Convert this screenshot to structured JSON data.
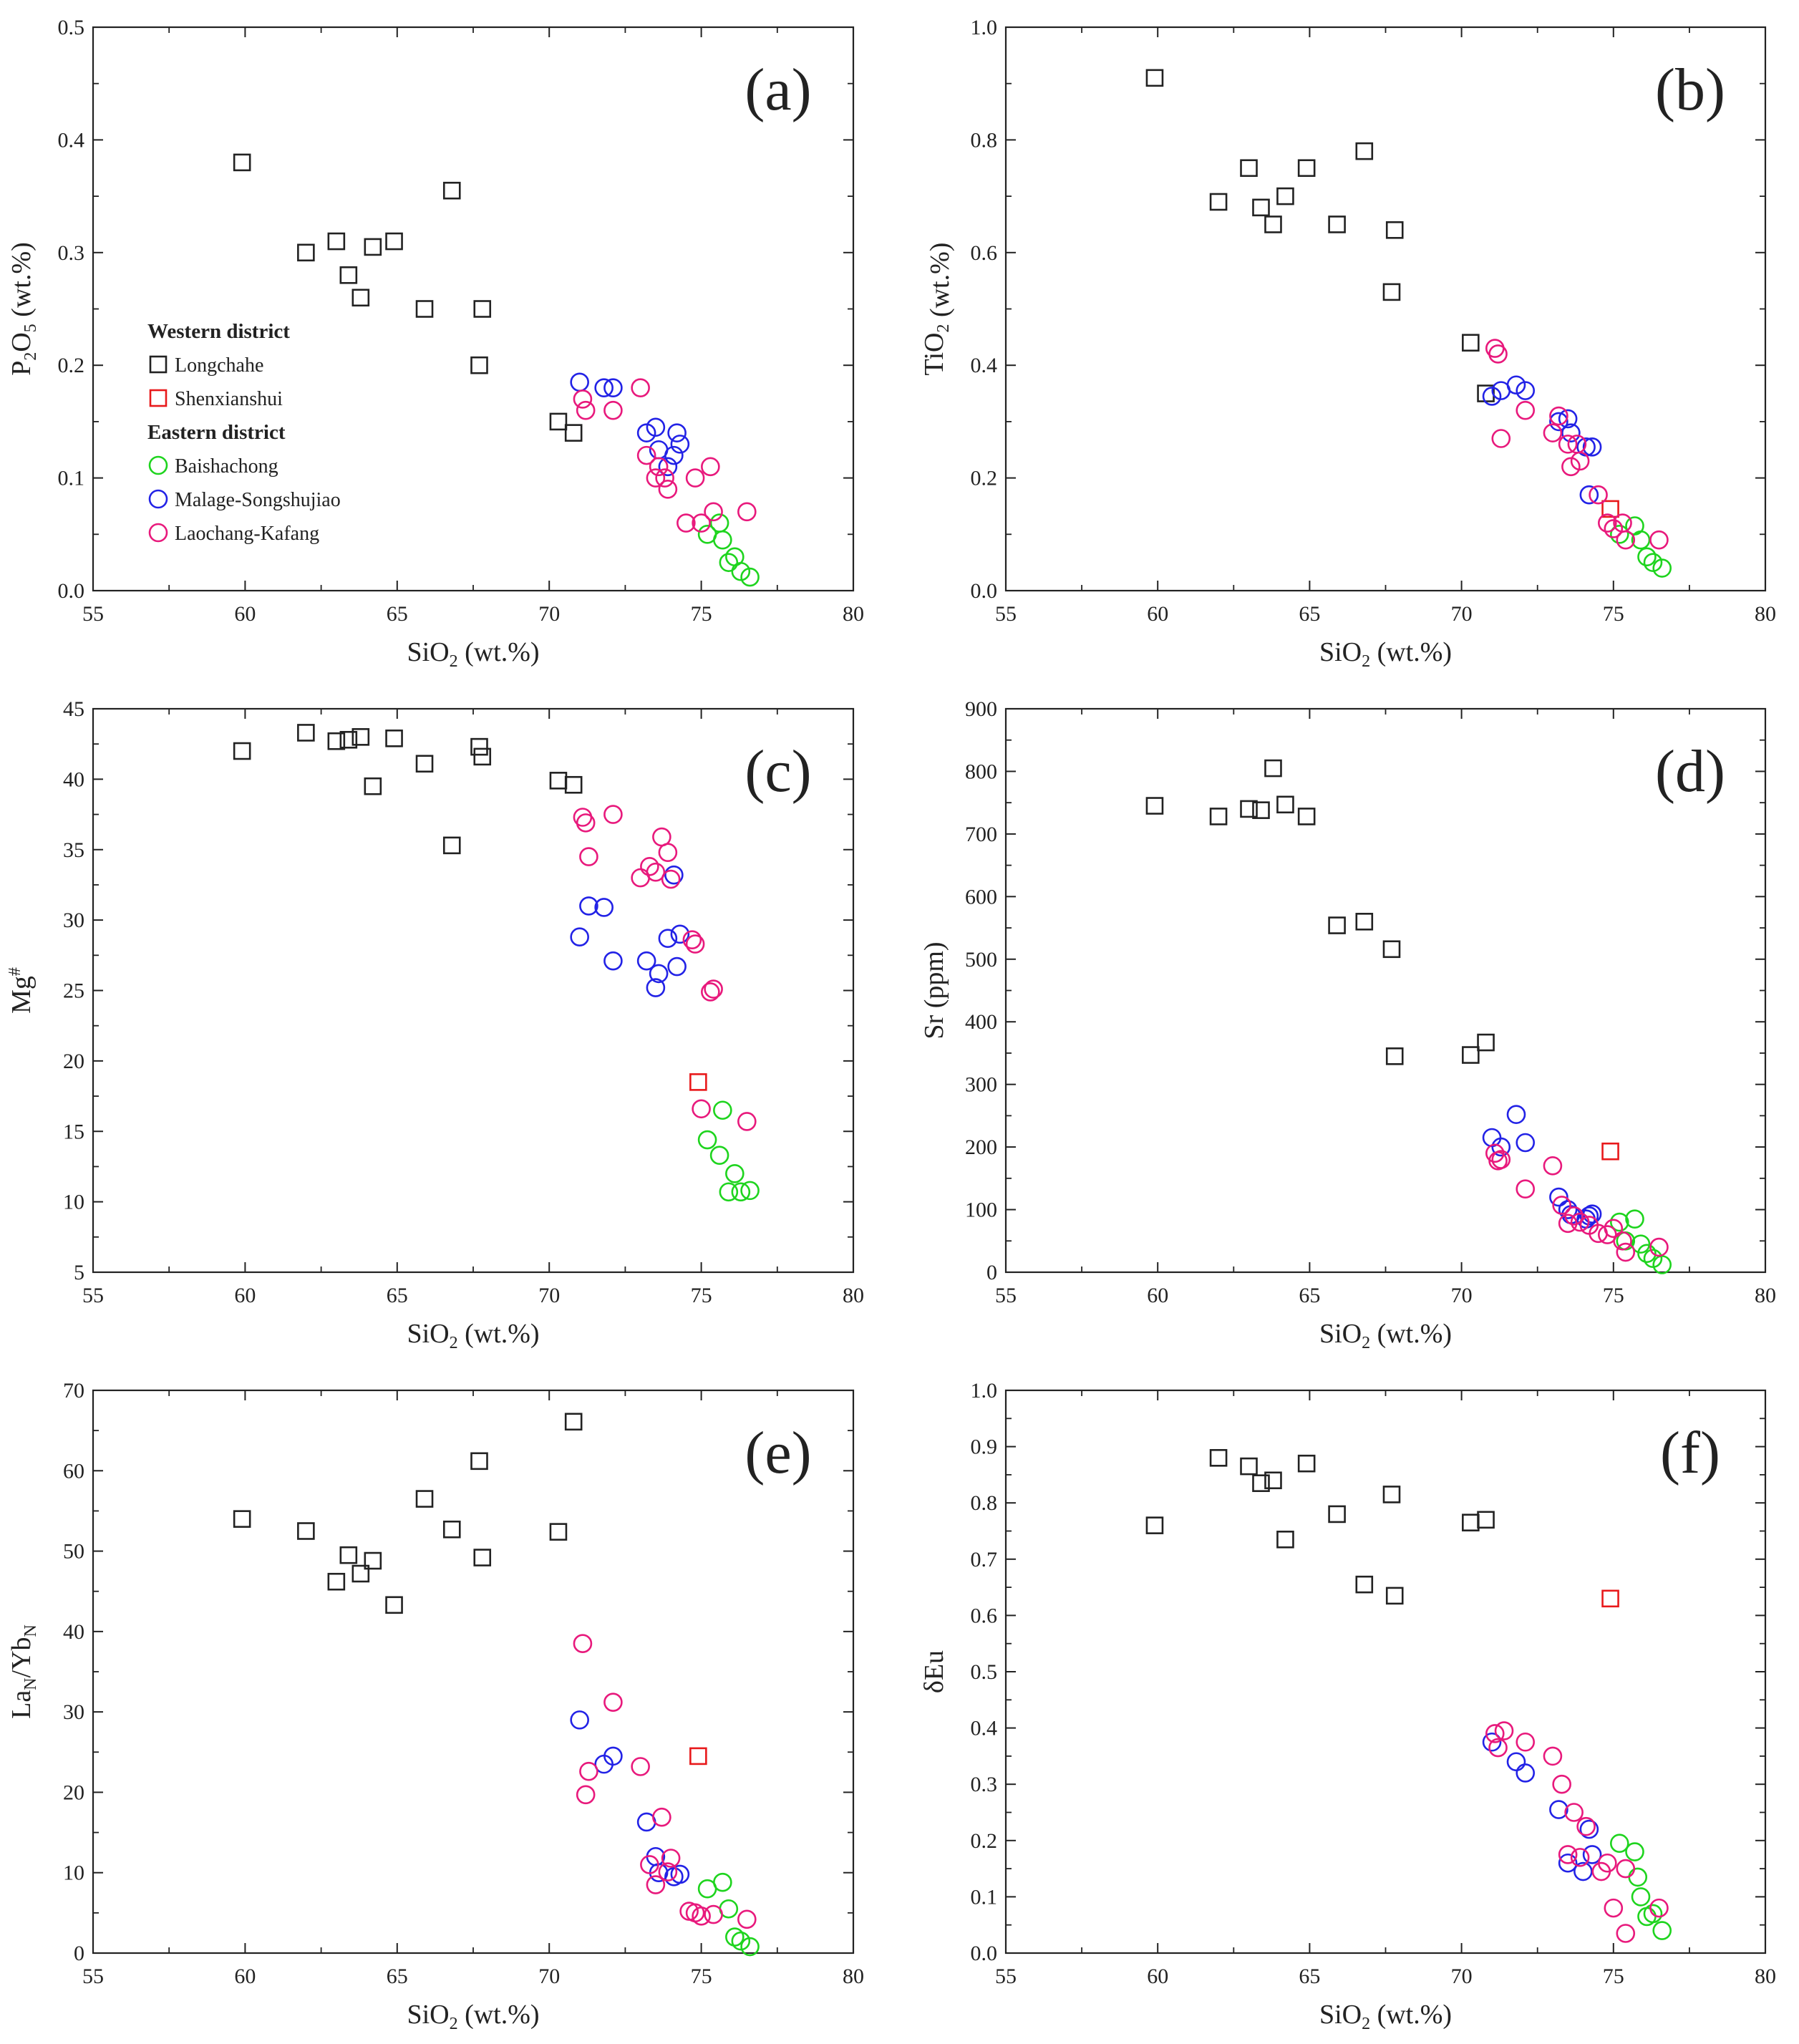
{
  "figure_title": "",
  "legend": {
    "western_heading": "Western district",
    "eastern_heading": "Eastern district",
    "entries": [
      {
        "name": "Longchahe",
        "marker": "square",
        "color": "#222222"
      },
      {
        "name": "Shenxianshui",
        "marker": "square",
        "color": "#e8191b"
      },
      {
        "name": "Baishachong",
        "marker": "circle",
        "color": "#1ed41e"
      },
      {
        "name": "Malage-Songshujiao",
        "marker": "circle",
        "color": "#2222e6"
      },
      {
        "name": "Laochang-Kafang",
        "marker": "circle",
        "color": "#e8197c"
      }
    ]
  },
  "chart_data": [
    {
      "type": "scatter",
      "panel": "(a)",
      "title": "",
      "xlabel": "SiO",
      "xlabel_sub": "2",
      "xlabel_tail": " (wt.%)",
      "ylabel": "P",
      "ylabel_sub": "2",
      "ylabel_mid": "O",
      "ylabel_sub2": "5",
      "ylabel_tail": " (wt.%)",
      "xlim": [
        55,
        80
      ],
      "ylim": [
        0,
        0.5
      ],
      "xticks": [
        "55",
        "60",
        "65",
        "70",
        "75",
        "80"
      ],
      "yticks": [
        "0.0",
        "0.1",
        "0.2",
        "0.3",
        "0.4",
        "0.5"
      ],
      "series": [
        {
          "name": "Longchahe",
          "x": [
            59.9,
            62.0,
            63.0,
            63.4,
            63.8,
            64.2,
            64.9,
            65.9,
            66.8,
            67.7,
            67.8,
            70.3,
            70.8
          ],
          "y": [
            0.38,
            0.3,
            0.31,
            0.28,
            0.26,
            0.305,
            0.31,
            0.25,
            0.355,
            0.2,
            0.25,
            0.15,
            0.14
          ]
        },
        {
          "name": "Shenxianshui",
          "x": [],
          "y": []
        },
        {
          "name": "Baishachong",
          "x": [
            75.2,
            75.6,
            75.7,
            75.9,
            76.1,
            76.3,
            76.6
          ],
          "y": [
            0.05,
            0.06,
            0.045,
            0.025,
            0.03,
            0.017,
            0.012
          ]
        },
        {
          "name": "Malage-Songshujiao",
          "x": [
            71.0,
            71.8,
            72.1,
            73.2,
            73.5,
            73.6,
            73.9,
            74.1,
            74.2,
            74.3
          ],
          "y": [
            0.185,
            0.18,
            0.18,
            0.14,
            0.145,
            0.125,
            0.11,
            0.12,
            0.14,
            0.13
          ]
        },
        {
          "name": "Laochang-Kafang",
          "x": [
            71.1,
            71.2,
            72.1,
            73.0,
            73.2,
            73.5,
            73.6,
            73.8,
            73.9,
            74.5,
            74.8,
            75.0,
            75.3,
            75.4,
            76.5
          ],
          "y": [
            0.17,
            0.16,
            0.16,
            0.18,
            0.12,
            0.1,
            0.11,
            0.1,
            0.09,
            0.06,
            0.1,
            0.06,
            0.11,
            0.07,
            0.07
          ]
        }
      ]
    },
    {
      "type": "scatter",
      "panel": "(b)",
      "title": "",
      "xlabel": "SiO",
      "xlabel_sub": "2",
      "xlabel_tail": " (wt.%)",
      "ylabel": "TiO",
      "ylabel_sub": "2",
      "ylabel_mid": "",
      "ylabel_sub2": "",
      "ylabel_tail": " (wt.%)",
      "xlim": [
        55,
        80
      ],
      "ylim": [
        0,
        1.0
      ],
      "xticks": [
        "55",
        "60",
        "65",
        "70",
        "75",
        "80"
      ],
      "yticks": [
        "0.0",
        "0.2",
        "0.4",
        "0.6",
        "0.8",
        "1.0"
      ],
      "series": [
        {
          "name": "Longchahe",
          "x": [
            59.9,
            62.0,
            63.0,
            63.4,
            63.8,
            64.2,
            64.9,
            65.9,
            66.8,
            67.7,
            67.8,
            70.3,
            70.8
          ],
          "y": [
            0.91,
            0.69,
            0.75,
            0.68,
            0.65,
            0.7,
            0.75,
            0.65,
            0.78,
            0.53,
            0.64,
            0.44,
            0.35
          ]
        },
        {
          "name": "Shenxianshui",
          "x": [
            74.9
          ],
          "y": [
            0.145
          ]
        },
        {
          "name": "Baishachong",
          "x": [
            75.2,
            75.7,
            75.9,
            76.1,
            76.3,
            76.6
          ],
          "y": [
            0.1,
            0.115,
            0.09,
            0.06,
            0.05,
            0.04
          ]
        },
        {
          "name": "Malage-Songshujiao",
          "x": [
            71.0,
            71.3,
            71.8,
            72.1,
            73.2,
            73.5,
            73.6,
            74.1,
            74.2,
            74.3
          ],
          "y": [
            0.345,
            0.355,
            0.365,
            0.355,
            0.3,
            0.305,
            0.28,
            0.255,
            0.17,
            0.255
          ]
        },
        {
          "name": "Laochang-Kafang",
          "x": [
            71.1,
            71.2,
            71.3,
            72.1,
            73.0,
            73.2,
            73.5,
            73.6,
            73.8,
            73.9,
            74.5,
            74.8,
            75.0,
            75.3,
            75.4,
            76.5
          ],
          "y": [
            0.43,
            0.42,
            0.27,
            0.32,
            0.28,
            0.31,
            0.26,
            0.22,
            0.26,
            0.23,
            0.17,
            0.12,
            0.11,
            0.12,
            0.09,
            0.09
          ]
        }
      ]
    },
    {
      "type": "scatter",
      "panel": "(c)",
      "title": "",
      "xlabel": "SiO",
      "xlabel_sub": "2",
      "xlabel_tail": " (wt.%)",
      "ylabel": "Mg",
      "ylabel_sub": "",
      "ylabel_mid": "",
      "ylabel_sub2": "",
      "ylabel_tail": "",
      "ylabel_sup": "#",
      "xlim": [
        55,
        80
      ],
      "ylim": [
        5,
        45
      ],
      "xticks": [
        "55",
        "60",
        "65",
        "70",
        "75",
        "80"
      ],
      "yticks": [
        "5",
        "10",
        "15",
        "20",
        "25",
        "30",
        "35",
        "40",
        "45"
      ],
      "series": [
        {
          "name": "Longchahe",
          "x": [
            59.9,
            62.0,
            63.0,
            63.4,
            63.8,
            64.2,
            64.9,
            65.9,
            66.8,
            67.7,
            67.8,
            70.3,
            70.8
          ],
          "y": [
            42.0,
            43.3,
            42.7,
            42.8,
            43.0,
            39.5,
            42.9,
            41.1,
            35.3,
            42.3,
            41.6,
            39.9,
            39.6
          ]
        },
        {
          "name": "Shenxianshui",
          "x": [
            74.9
          ],
          "y": [
            18.5
          ]
        },
        {
          "name": "Baishachong",
          "x": [
            75.2,
            75.6,
            75.7,
            75.9,
            76.1,
            76.3,
            76.6
          ],
          "y": [
            14.4,
            13.3,
            16.5,
            10.7,
            12.0,
            10.7,
            10.8
          ]
        },
        {
          "name": "Malage-Songshujiao",
          "x": [
            71.0,
            71.3,
            71.8,
            72.1,
            73.2,
            73.5,
            73.6,
            73.9,
            74.1,
            74.2,
            74.3
          ],
          "y": [
            28.8,
            31.0,
            30.9,
            27.1,
            27.1,
            25.2,
            26.2,
            28.7,
            33.2,
            26.7,
            29.0
          ]
        },
        {
          "name": "Laochang-Kafang",
          "x": [
            71.1,
            71.2,
            71.3,
            72.1,
            73.0,
            73.3,
            73.5,
            73.7,
            73.9,
            74.0,
            74.7,
            74.8,
            75.0,
            75.3,
            75.4,
            76.5
          ],
          "y": [
            37.3,
            36.9,
            34.5,
            37.5,
            33.0,
            33.8,
            33.4,
            35.9,
            34.8,
            32.9,
            28.6,
            28.3,
            16.6,
            24.9,
            25.1,
            15.7
          ]
        }
      ]
    },
    {
      "type": "scatter",
      "panel": "(d)",
      "title": "",
      "xlabel": "SiO",
      "xlabel_sub": "2",
      "xlabel_tail": " (wt.%)",
      "ylabel": "Sr (ppm)",
      "ylabel_sub": "",
      "ylabel_mid": "",
      "ylabel_sub2": "",
      "ylabel_tail": "",
      "xlim": [
        55,
        80
      ],
      "ylim": [
        0,
        900
      ],
      "xticks": [
        "55",
        "60",
        "65",
        "70",
        "75",
        "80"
      ],
      "yticks": [
        "0",
        "100",
        "200",
        "300",
        "400",
        "500",
        "600",
        "700",
        "800",
        "900"
      ],
      "series": [
        {
          "name": "Longchahe",
          "x": [
            59.9,
            62.0,
            63.0,
            63.4,
            63.8,
            64.2,
            64.9,
            65.9,
            66.8,
            67.7,
            67.8,
            70.3,
            70.8
          ],
          "y": [
            745,
            728,
            740,
            738,
            805,
            747,
            728,
            554,
            560,
            516,
            345,
            347,
            367
          ]
        },
        {
          "name": "Shenxianshui",
          "x": [
            74.9
          ],
          "y": [
            193
          ]
        },
        {
          "name": "Baishachong",
          "x": [
            75.2,
            75.4,
            75.7,
            75.9,
            76.1,
            76.3,
            76.6
          ],
          "y": [
            80,
            50,
            85,
            45,
            30,
            22,
            12
          ]
        },
        {
          "name": "Malage-Songshujiao",
          "x": [
            71.0,
            71.3,
            71.8,
            72.1,
            73.2,
            73.5,
            73.6,
            74.1,
            74.2,
            74.3
          ],
          "y": [
            215,
            200,
            252,
            207,
            120,
            100,
            92,
            85,
            90,
            93
          ]
        },
        {
          "name": "Laochang-Kafang",
          "x": [
            71.1,
            71.2,
            71.3,
            72.1,
            73.0,
            73.3,
            73.5,
            73.7,
            73.9,
            74.2,
            74.5,
            74.8,
            75.0,
            75.3,
            75.4,
            76.5
          ],
          "y": [
            190,
            178,
            180,
            133,
            170,
            107,
            78,
            90,
            80,
            75,
            62,
            60,
            70,
            50,
            32,
            40
          ]
        }
      ]
    },
    {
      "type": "scatter",
      "panel": "(e)",
      "title": "",
      "xlabel": "SiO",
      "xlabel_sub": "2",
      "xlabel_tail": " (wt.%)",
      "ylabel": "La",
      "ylabel_sub": "N",
      "ylabel_mid": "/Yb",
      "ylabel_sub2": "N",
      "ylabel_tail": "",
      "xlim": [
        55,
        80
      ],
      "ylim": [
        0,
        70
      ],
      "xticks": [
        "55",
        "60",
        "65",
        "70",
        "75",
        "80"
      ],
      "yticks": [
        "0",
        "10",
        "20",
        "30",
        "40",
        "50",
        "60",
        "70"
      ],
      "series": [
        {
          "name": "Longchahe",
          "x": [
            59.9,
            62.0,
            63.0,
            63.4,
            63.8,
            64.2,
            64.9,
            65.9,
            66.8,
            67.7,
            67.8,
            70.3,
            70.8
          ],
          "y": [
            54.0,
            52.5,
            46.2,
            49.5,
            47.2,
            48.8,
            43.3,
            56.5,
            52.7,
            61.2,
            49.2,
            52.4,
            66.1
          ]
        },
        {
          "name": "Shenxianshui",
          "x": [
            74.9
          ],
          "y": [
            24.5
          ]
        },
        {
          "name": "Baishachong",
          "x": [
            75.2,
            75.7,
            75.9,
            76.1,
            76.3,
            76.6
          ],
          "y": [
            8.0,
            8.8,
            5.5,
            2.0,
            1.5,
            0.8
          ]
        },
        {
          "name": "Malage-Songshujiao",
          "x": [
            71.0,
            71.8,
            72.1,
            73.2,
            73.5,
            73.6,
            74.1,
            74.3
          ],
          "y": [
            29.0,
            23.5,
            24.5,
            16.3,
            12.0,
            10.0,
            9.5,
            9.8
          ]
        },
        {
          "name": "Laochang-Kafang",
          "x": [
            71.1,
            71.2,
            71.3,
            72.1,
            73.0,
            73.3,
            73.5,
            73.7,
            73.9,
            74.0,
            74.6,
            74.8,
            75.0,
            75.4,
            76.5
          ],
          "y": [
            38.5,
            19.7,
            22.6,
            31.2,
            23.2,
            11.0,
            8.5,
            16.9,
            10.1,
            11.8,
            5.2,
            5.0,
            4.6,
            4.8,
            4.2
          ]
        }
      ]
    },
    {
      "type": "scatter",
      "panel": "(f)",
      "title": "",
      "xlabel": "SiO",
      "xlabel_sub": "2",
      "xlabel_tail": " (wt.%)",
      "ylabel": "δEu",
      "ylabel_sub": "",
      "ylabel_mid": "",
      "ylabel_sub2": "",
      "ylabel_tail": "",
      "xlim": [
        55,
        80
      ],
      "ylim": [
        0,
        1.0
      ],
      "xticks": [
        "55",
        "60",
        "65",
        "70",
        "75",
        "80"
      ],
      "yticks": [
        "0.0",
        "0.1",
        "0.2",
        "0.3",
        "0.4",
        "0.5",
        "0.6",
        "0.7",
        "0.8",
        "0.9",
        "1.0"
      ],
      "series": [
        {
          "name": "Longchahe",
          "x": [
            59.9,
            62.0,
            63.0,
            63.4,
            63.8,
            64.2,
            64.9,
            65.9,
            66.8,
            67.7,
            67.8,
            70.3,
            70.8
          ],
          "y": [
            0.76,
            0.88,
            0.865,
            0.835,
            0.84,
            0.735,
            0.87,
            0.78,
            0.655,
            0.815,
            0.635,
            0.765,
            0.77
          ]
        },
        {
          "name": "Shenxianshui",
          "x": [
            74.9
          ],
          "y": [
            0.63
          ]
        },
        {
          "name": "Baishachong",
          "x": [
            75.2,
            75.7,
            75.8,
            75.9,
            76.1,
            76.3,
            76.6
          ],
          "y": [
            0.195,
            0.18,
            0.135,
            0.1,
            0.065,
            0.07,
            0.04
          ]
        },
        {
          "name": "Malage-Songshujiao",
          "x": [
            71.0,
            71.8,
            72.1,
            73.2,
            73.5,
            74.0,
            74.2,
            74.3
          ],
          "y": [
            0.375,
            0.34,
            0.32,
            0.255,
            0.16,
            0.145,
            0.22,
            0.175
          ]
        },
        {
          "name": "Laochang-Kafang",
          "x": [
            71.1,
            71.2,
            71.4,
            72.1,
            73.0,
            73.3,
            73.5,
            73.7,
            73.9,
            74.1,
            74.6,
            74.8,
            75.0,
            75.4,
            75.4,
            76.5
          ],
          "y": [
            0.39,
            0.365,
            0.395,
            0.375,
            0.35,
            0.3,
            0.175,
            0.25,
            0.17,
            0.225,
            0.145,
            0.16,
            0.08,
            0.15,
            0.035,
            0.08
          ]
        }
      ]
    }
  ]
}
